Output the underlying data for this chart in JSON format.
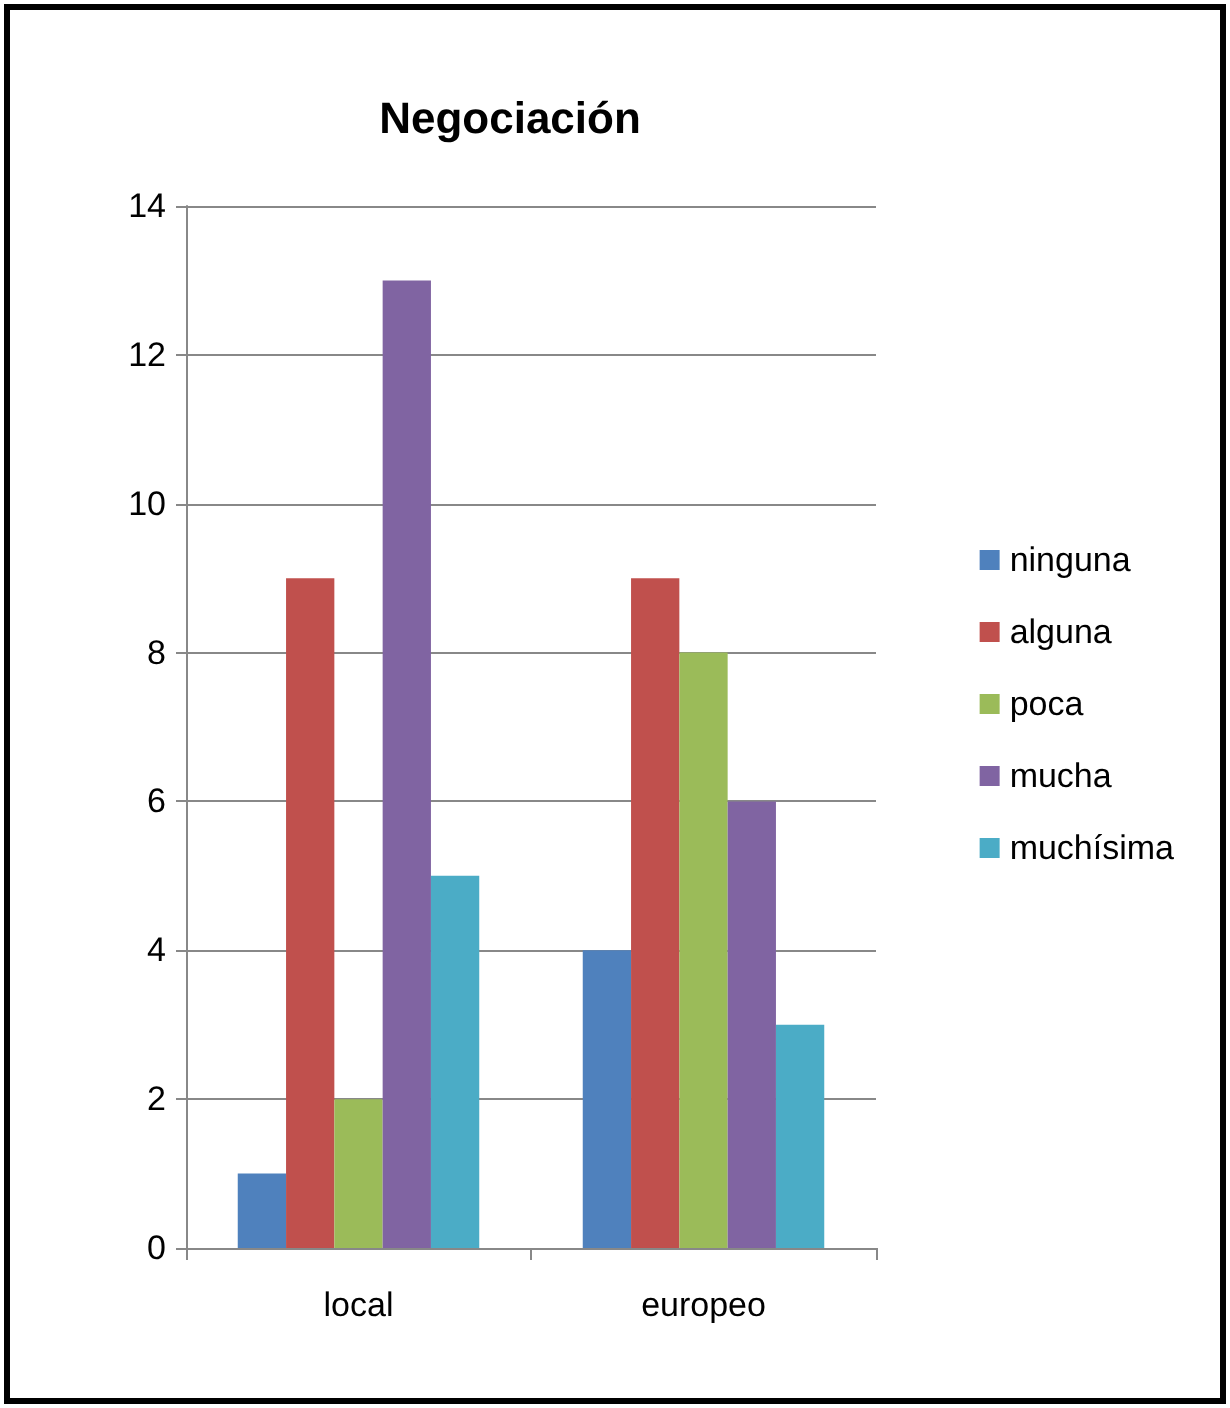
{
  "chart_data": {
    "type": "bar",
    "title": "Negociación",
    "categories": [
      "local",
      "europeo"
    ],
    "series": [
      {
        "name": "ninguna",
        "color": "#4f81bd",
        "values": [
          1,
          4
        ]
      },
      {
        "name": "alguna",
        "color": "#c0504d",
        "values": [
          9,
          9
        ]
      },
      {
        "name": "poca",
        "color": "#9bbb59",
        "values": [
          2,
          8
        ]
      },
      {
        "name": "mucha",
        "color": "#8064a2",
        "values": [
          13,
          6
        ]
      },
      {
        "name": "muchísima",
        "color": "#4bacc6",
        "values": [
          5,
          3
        ]
      }
    ],
    "ylim": [
      0,
      14
    ],
    "yticks": [
      0,
      2,
      4,
      6,
      8,
      10,
      12,
      14
    ],
    "grid": "y",
    "legend": "right"
  }
}
